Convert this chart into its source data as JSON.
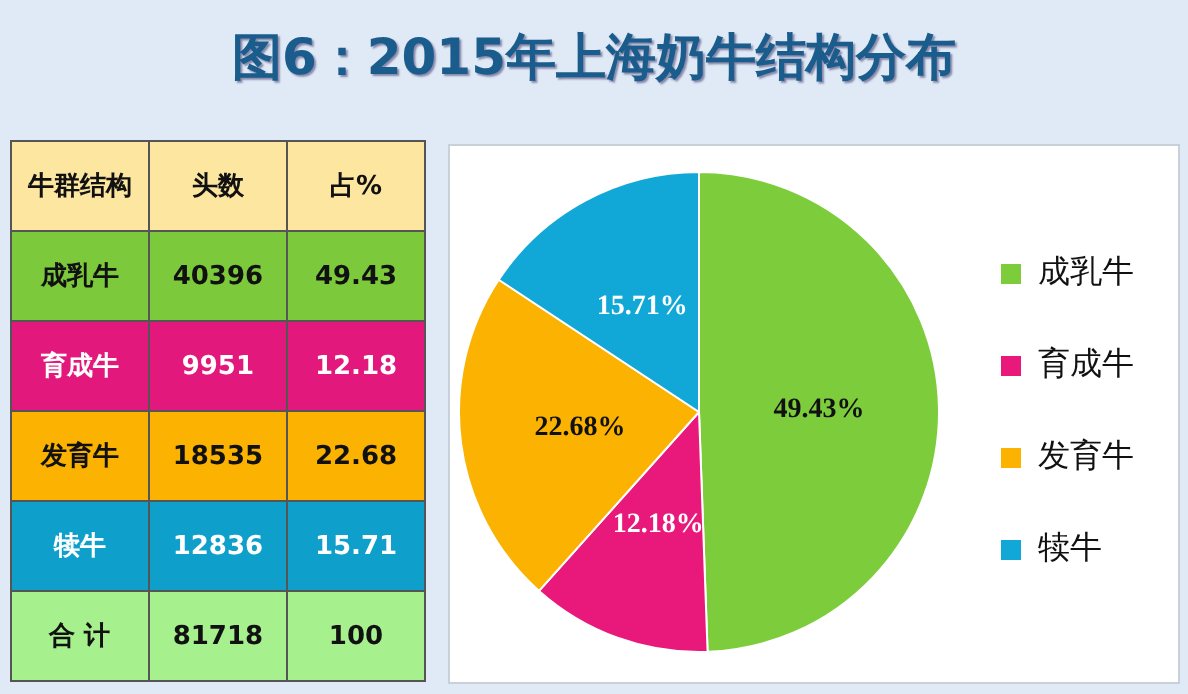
{
  "chart_data": [
    {
      "type": "other",
      "data_labels": true,
      "annotations": [
        "牛群结构"
      ],
      "categories": [
        "成乳牛",
        "育成牛",
        "发育牛",
        "犊牛",
        "合 计"
      ],
      "series": [
        {
          "name": "头数",
          "colors": [
            "#7dc93c",
            "#e3187c",
            "#fbb200",
            "#0f9fcb",
            "#a6f08e"
          ],
          "values": [
            40396,
            9951,
            18535,
            12836,
            81718
          ]
        },
        {
          "name": "占%",
          "colors": [
            "#7dc93c",
            "#e3187c",
            "#fbb200",
            "#0f9fcb",
            "#a6f08e"
          ],
          "values": [
            49.43,
            12.18,
            22.68,
            15.71,
            100
          ]
        }
      ]
    },
    {
      "type": "pie",
      "title": "图6：2015年上海奶牛结构分布",
      "categories": [
        "成乳牛",
        "育成牛",
        "发育牛",
        "犊牛"
      ],
      "values": [
        49.43,
        12.18,
        22.68,
        15.71
      ],
      "colors": [
        "#7dcc3c",
        "#e8197a",
        "#fbb200",
        "#11a8d8"
      ],
      "value_labels": [
        "49.43%",
        "12.18%",
        "22.68%",
        "15.71%"
      ],
      "legend": "right"
    }
  ]
}
